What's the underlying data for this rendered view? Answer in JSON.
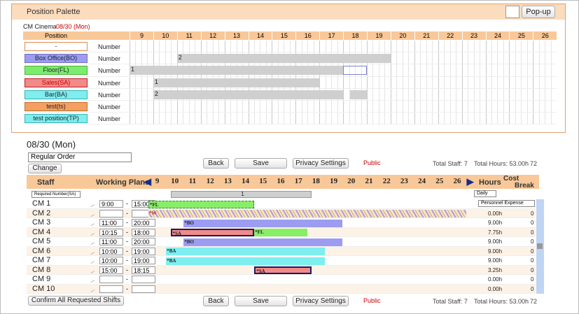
{
  "palette": {
    "title": "Position Palette",
    "popup": "Pop-up",
    "venue": "CM Cinema",
    "date": "08/30 (Mon)",
    "position_header": "Position",
    "hours": [
      9,
      10,
      11,
      12,
      13,
      14,
      15,
      16,
      17,
      18,
      19,
      20,
      21,
      22,
      23,
      24,
      25,
      26
    ],
    "rows": [
      {
        "label": "-",
        "kind": "Number",
        "color": "#ffffff",
        "border": "#e08a50",
        "segments": []
      },
      {
        "label": "Box Office(BO)",
        "kind": "Number",
        "color": "#9c9cf0",
        "border": "#7070c0",
        "segments": [
          {
            "start": 11,
            "end": 20,
            "label": "2"
          }
        ]
      },
      {
        "label": "Floor(FL)",
        "kind": "Number",
        "color": "#7cec6c",
        "border": "#50b040",
        "segments": [
          {
            "start": 9,
            "end": 18,
            "label": "1"
          },
          {
            "start": 18,
            "end": 19,
            "style": "outline"
          }
        ]
      },
      {
        "label": "Sales(SA)",
        "kind": "Number",
        "color": "#f28a8a",
        "border": "#c02020",
        "segments": [
          {
            "start": 10,
            "end": 17,
            "label": "1"
          }
        ]
      },
      {
        "label": "Bar(BA)",
        "kind": "Number",
        "color": "#7eeeee",
        "border": "#40b0b0",
        "segments": [
          {
            "start": 10,
            "end": 18,
            "label": "2"
          },
          {
            "start": 18.3,
            "end": 19
          }
        ]
      },
      {
        "label": "test(ts)",
        "kind": "Number",
        "color": "#f4a060",
        "border": "#c07030",
        "segments": []
      },
      {
        "label": "test position(TP)",
        "kind": "Number",
        "color": "#7eeeee",
        "border": "#40b0b0",
        "segments": []
      }
    ]
  },
  "schedule": {
    "date": "08/30 (Mon)",
    "order": "Regular Order",
    "change": "Change",
    "back": "Back",
    "save": "Save",
    "privacy": "Privacy Settings",
    "public": "Public",
    "total_staff": "Total Staff: 7",
    "total_hours": "Total Hours:  53.00h",
    "total_extra": "72",
    "staff_header": "Staff",
    "plans_header": "Working Plans",
    "hours_header": "Hours",
    "cost_header": "Cost",
    "break_header": "Break",
    "hours": [
      9,
      10,
      11,
      12,
      13,
      14,
      15,
      16,
      17,
      18,
      19,
      20,
      21,
      22,
      23,
      24,
      25,
      26
    ],
    "required": "Required Number(SA)",
    "required_bar": {
      "start": 10.25,
      "end": 18.25,
      "label": "1"
    },
    "daily": "Daily",
    "expense": "Personnel Expense",
    "confirm": "Confirm All Requested Shifts",
    "staff": [
      {
        "name": "CM 1",
        "from": "9:00",
        "to": "15:00",
        "shifts": [
          {
            "label": "*FL",
            "start": 9,
            "end": 15,
            "color": "#88ee66",
            "style": "dashed"
          }
        ]
      },
      {
        "name": "CM 2",
        "from": "",
        "to": "",
        "hours": "0.00h",
        "cost": "0",
        "shifts": [
          {
            "label": "*W",
            "start": 9,
            "end": 27,
            "color": "#f5e6c8",
            "style": "hatched"
          }
        ]
      },
      {
        "name": "CM 3",
        "from": "11:00",
        "to": "20:00",
        "hours": "9.00h",
        "cost": "0",
        "shifts": [
          {
            "label": "*BO",
            "start": 11,
            "end": 20,
            "color": "#9c9cf0"
          }
        ]
      },
      {
        "name": "CM 4",
        "from": "10:15",
        "to": "18:00",
        "hours": "7.75h",
        "cost": "0",
        "shifts": [
          {
            "label": "*SA",
            "start": 10.25,
            "end": 15,
            "color": "#f28a8a",
            "style": "outlined"
          },
          {
            "label": "*FL",
            "start": 15,
            "end": 18,
            "color": "#88ee66"
          }
        ]
      },
      {
        "name": "CM 5",
        "from": "11:00",
        "to": "20:00",
        "hours": "9.00h",
        "cost": "0",
        "shifts": [
          {
            "label": "*BO",
            "start": 11,
            "end": 20,
            "color": "#9c9cf0"
          }
        ]
      },
      {
        "name": "CM 6",
        "from": "10:00",
        "to": "19:00",
        "hours": "9.00h",
        "cost": "0",
        "shifts": [
          {
            "label": "*BA",
            "start": 10,
            "end": 19,
            "color": "#7eeeee"
          }
        ]
      },
      {
        "name": "CM 7",
        "from": "10:00",
        "to": "19:00",
        "hours": "9.00h",
        "cost": "0",
        "shifts": [
          {
            "label": "*BA",
            "start": 10,
            "end": 19,
            "color": "#7eeeee"
          }
        ]
      },
      {
        "name": "CM 8",
        "from": "15:00",
        "to": "18:15",
        "hours": "3.25h",
        "cost": "0",
        "shifts": [
          {
            "label": "*SA",
            "start": 15,
            "end": 18.25,
            "color": "#f28a8a",
            "style": "outlined"
          }
        ]
      },
      {
        "name": "CM 9",
        "from": "",
        "to": "",
        "hours": "0.00h",
        "cost": "0",
        "shifts": []
      },
      {
        "name": "CM 10",
        "from": "",
        "to": "",
        "hours": "0.00h",
        "cost": "0",
        "shifts": []
      }
    ]
  }
}
